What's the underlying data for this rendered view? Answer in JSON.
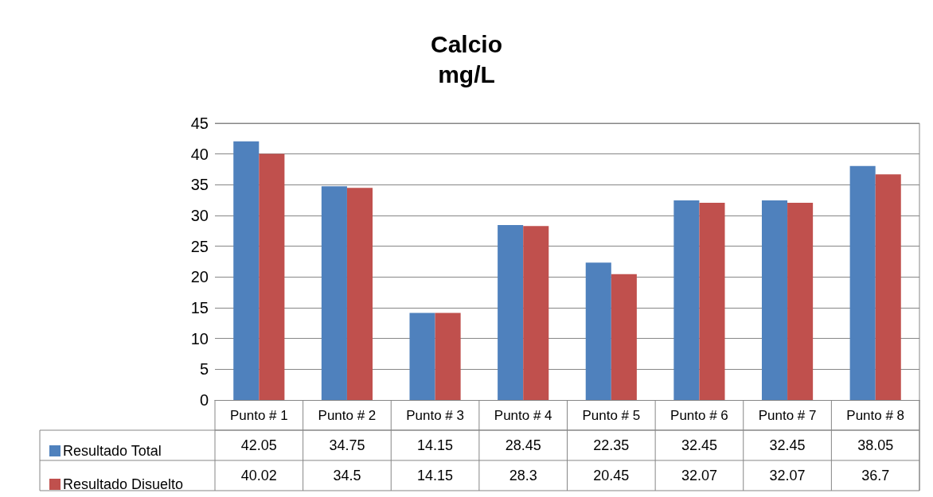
{
  "chart_data": {
    "type": "bar",
    "title": "Calcio",
    "subtitle": "mg/L",
    "categories": [
      "Punto # 1",
      "Punto # 2",
      "Punto # 3",
      "Punto # 4",
      "Punto # 5",
      "Punto # 6",
      "Punto # 7",
      "Punto # 8"
    ],
    "series": [
      {
        "name": "Resultado Total",
        "color": "#4f81bd",
        "values": [
          42.05,
          34.75,
          14.15,
          28.45,
          22.35,
          32.45,
          32.45,
          38.05
        ]
      },
      {
        "name": "Resultado Disuelto",
        "color": "#c0504d",
        "values": [
          40.02,
          34.5,
          14.15,
          28.3,
          20.45,
          32.07,
          32.07,
          36.7
        ]
      }
    ],
    "ylim": [
      0,
      45
    ],
    "yticks": [
      0,
      5,
      10,
      15,
      20,
      25,
      30,
      35,
      40,
      45
    ],
    "grid": "y",
    "legend": "bottom left",
    "data_labels": true
  }
}
